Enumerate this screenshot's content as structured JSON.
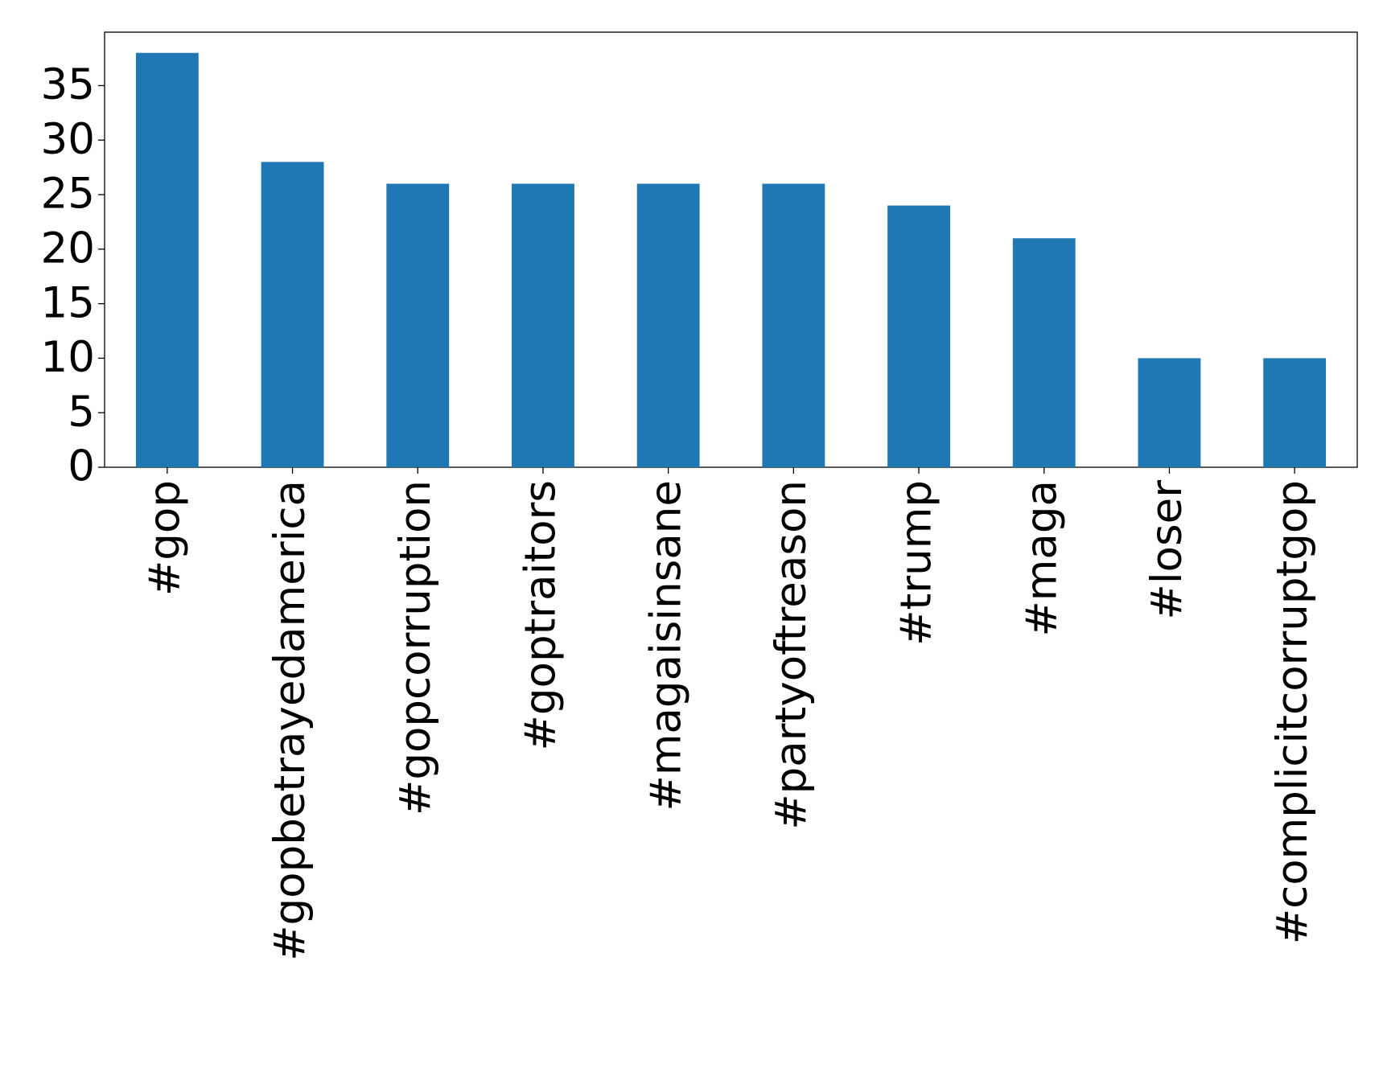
{
  "chart_data": {
    "type": "bar",
    "categories": [
      "#gop",
      "#gopbetrayedamerica",
      "#gopcorruption",
      "#goptraitors",
      "#magaisinsane",
      "#partyoftreason",
      "#trump",
      "#maga",
      "#loser",
      "#complicitcorruptgop"
    ],
    "values": [
      38,
      28,
      26,
      26,
      26,
      26,
      24,
      21,
      10,
      10
    ],
    "color": "#1f77b4",
    "ylim": [
      0,
      39.9
    ],
    "yticks": [
      0,
      5,
      10,
      15,
      20,
      25,
      30,
      35
    ],
    "grid": false
  }
}
